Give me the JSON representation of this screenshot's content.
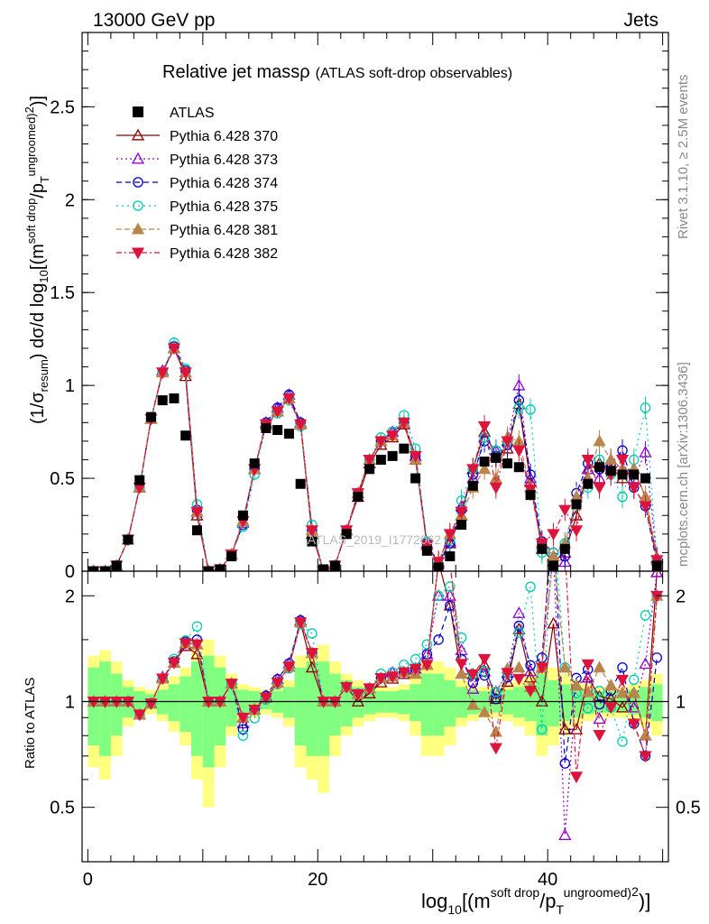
{
  "header": {
    "left": "13000 GeV pp",
    "right": "Jets"
  },
  "side_labels": {
    "rivet": "Rivet 3.1.10, ≥ 2.5M events",
    "mcplots": "mcplots.cern.ch [arXiv:1306.3436]"
  },
  "watermark": "ATLAS_2019_I1772062",
  "colors": {
    "atlas": "#000000",
    "p370": "#8b0000",
    "p373": "#9400d3",
    "p374": "#0000cd",
    "p375": "#00cdb0",
    "p381": "#b8864b",
    "p382": "#dc143c",
    "band_yellow": "#ffff80",
    "band_green": "#80ff80"
  },
  "chart_data": [
    {
      "type": "scatter",
      "title_main": "Relative jet massρ",
      "title_sub": "(ATLAS soft-drop observables)",
      "ylabel": "(1/σresum) dσ/d log10[(msoft drop/pTungroomed)2)]",
      "xlim": [
        -0.5,
        50.5
      ],
      "ylim": [
        0,
        2.9
      ],
      "yticks": [
        "0",
        "0.5",
        "1",
        "1.5",
        "2",
        "2.5"
      ],
      "yticks_values": [
        0,
        0.5,
        1,
        1.5,
        2,
        2.5
      ],
      "legend_position": "top-left",
      "atlas": {
        "name": "ATLAS",
        "x": [
          0.5,
          1.5,
          2.5,
          3.5,
          4.5,
          5.5,
          6.5,
          7.5,
          8.5,
          9.5,
          10.5,
          11.5,
          12.5,
          13.5,
          14.5,
          15.5,
          16.5,
          17.5,
          18.5,
          19.5,
          20.5,
          21.5,
          22.5,
          23.5,
          24.5,
          25.5,
          26.5,
          27.5,
          28.5,
          29.5,
          30.5,
          31.5,
          32.5,
          33.5,
          34.5,
          35.5,
          36.5,
          37.5,
          38.5,
          39.5,
          40.5,
          41.5,
          42.5,
          43.5,
          44.5,
          45.5,
          46.5,
          47.5,
          48.5,
          49.5
        ],
        "y": [
          0.0,
          0.0,
          0.03,
          0.17,
          0.49,
          0.83,
          0.92,
          0.93,
          0.73,
          0.22,
          0.0,
          0.01,
          0.08,
          0.3,
          0.58,
          0.77,
          0.76,
          0.74,
          0.47,
          0.16,
          0.01,
          0.03,
          0.2,
          0.4,
          0.55,
          0.6,
          0.62,
          0.66,
          0.5,
          0.11,
          0.02,
          0.08,
          0.25,
          0.46,
          0.59,
          0.61,
          0.58,
          0.56,
          0.41,
          0.12,
          0.03,
          0.12,
          0.36,
          0.47,
          0.56,
          0.54,
          0.52,
          0.52,
          0.5,
          0.03
        ]
      },
      "series": [
        {
          "name": "Pythia 6.428 370",
          "y": [
            0.0,
            0.0,
            0.03,
            0.17,
            0.45,
            0.82,
            1.07,
            1.2,
            1.05,
            0.3,
            0.0,
            0.01,
            0.09,
            0.27,
            0.55,
            0.79,
            0.86,
            0.93,
            0.79,
            0.2,
            0.0,
            0.03,
            0.22,
            0.4,
            0.58,
            0.68,
            0.72,
            0.79,
            0.6,
            0.14,
            0.05,
            0.15,
            0.3,
            0.55,
            0.75,
            0.62,
            0.66,
            0.9,
            0.48,
            0.12,
            0.05,
            0.1,
            0.3,
            0.55,
            0.58,
            0.55,
            0.5,
            0.55,
            0.4,
            0.07
          ]
        },
        {
          "name": "Pythia 6.428 373",
          "y": [
            0.0,
            0.0,
            0.03,
            0.17,
            0.45,
            0.82,
            1.08,
            1.2,
            1.07,
            0.32,
            0.0,
            0.01,
            0.09,
            0.26,
            0.55,
            0.8,
            0.88,
            0.95,
            0.8,
            0.22,
            0.0,
            0.03,
            0.22,
            0.42,
            0.6,
            0.7,
            0.75,
            0.8,
            0.62,
            0.15,
            0.04,
            0.16,
            0.35,
            0.5,
            0.72,
            0.65,
            0.7,
            1.0,
            0.5,
            0.15,
            0.08,
            0.05,
            0.4,
            0.55,
            0.5,
            0.6,
            0.55,
            0.5,
            0.64,
            0.07
          ]
        },
        {
          "name": "Pythia 6.428 374",
          "y": [
            0.0,
            0.0,
            0.03,
            0.17,
            0.45,
            0.82,
            1.07,
            1.21,
            1.08,
            0.33,
            0.0,
            0.01,
            0.09,
            0.25,
            0.55,
            0.8,
            0.88,
            0.95,
            0.8,
            0.22,
            0.0,
            0.03,
            0.22,
            0.42,
            0.6,
            0.7,
            0.75,
            0.8,
            0.62,
            0.15,
            0.03,
            0.15,
            0.33,
            0.52,
            0.7,
            0.62,
            0.68,
            0.92,
            0.52,
            0.16,
            0.1,
            0.08,
            0.42,
            0.58,
            0.55,
            0.58,
            0.65,
            0.45,
            0.35,
            0.04
          ]
        },
        {
          "name": "Pythia 6.428 375",
          "y": [
            0.0,
            0.0,
            0.03,
            0.17,
            0.45,
            0.82,
            1.07,
            1.23,
            1.09,
            0.36,
            0.0,
            0.01,
            0.09,
            0.24,
            0.52,
            0.78,
            0.85,
            0.92,
            0.78,
            0.25,
            0.0,
            0.03,
            0.22,
            0.42,
            0.6,
            0.72,
            0.75,
            0.84,
            0.66,
            0.16,
            0.04,
            0.17,
            0.38,
            0.55,
            0.72,
            0.65,
            0.7,
            0.88,
            0.87,
            0.1,
            0.1,
            0.15,
            0.38,
            0.45,
            0.6,
            0.52,
            0.4,
            0.6,
            0.88,
            0.06
          ]
        },
        {
          "name": "Pythia 6.428 381",
          "y": [
            0.0,
            0.0,
            0.03,
            0.17,
            0.45,
            0.82,
            1.07,
            1.2,
            1.07,
            0.32,
            0.0,
            0.01,
            0.09,
            0.27,
            0.55,
            0.79,
            0.86,
            0.93,
            0.79,
            0.22,
            0.0,
            0.03,
            0.22,
            0.42,
            0.6,
            0.7,
            0.73,
            0.8,
            0.6,
            0.14,
            0.05,
            0.2,
            0.3,
            0.45,
            0.55,
            0.5,
            0.72,
            0.7,
            0.45,
            0.15,
            0.08,
            0.15,
            0.4,
            0.5,
            0.7,
            0.6,
            0.55,
            0.55,
            0.4,
            0.06
          ]
        },
        {
          "name": "Pythia 6.428 382",
          "y": [
            0.0,
            0.0,
            0.03,
            0.17,
            0.45,
            0.82,
            1.07,
            1.2,
            1.07,
            0.32,
            0.0,
            0.01,
            0.09,
            0.27,
            0.55,
            0.79,
            0.86,
            0.93,
            0.79,
            0.22,
            0.0,
            0.03,
            0.22,
            0.42,
            0.6,
            0.7,
            0.73,
            0.8,
            0.62,
            0.14,
            0.05,
            0.2,
            0.32,
            0.55,
            0.78,
            0.45,
            0.7,
            0.65,
            0.44,
            0.15,
            0.2,
            0.33,
            0.22,
            0.6,
            0.45,
            0.52,
            0.6,
            0.45,
            0.35,
            0.06
          ]
        }
      ]
    },
    {
      "type": "scatter",
      "ylabel": "Ratio to ATLAS",
      "xlabel": "log10[(msoft drop/pTungroomed)2)]",
      "xlim": [
        -0.5,
        50.5
      ],
      "ylim": [
        0.35,
        2.35
      ],
      "yscale": "log",
      "xticks": [
        "0",
        "20",
        "40"
      ],
      "xticks_values": [
        0,
        20,
        40
      ],
      "yticks": [
        "0.5",
        "1",
        "2"
      ],
      "yticks_values": [
        0.5,
        1,
        2
      ],
      "reference_line": 1,
      "bands": {
        "yellow_half_width": [
          0.35,
          0.4,
          0.3,
          0.15,
          0.1,
          0.08,
          0.12,
          0.18,
          0.25,
          0.4,
          0.5,
          0.35,
          0.2,
          0.12,
          0.1,
          0.08,
          0.1,
          0.15,
          0.35,
          0.4,
          0.45,
          0.3,
          0.2,
          0.15,
          0.12,
          0.1,
          0.1,
          0.12,
          0.2,
          0.3,
          0.3,
          0.25,
          0.15,
          0.12,
          0.1,
          0.1,
          0.12,
          0.15,
          0.2,
          0.3,
          0.25,
          0.2,
          0.15,
          0.12,
          0.1,
          0.1,
          0.1,
          0.12,
          0.15,
          0.2
        ],
        "green_half_width": [
          0.25,
          0.3,
          0.2,
          0.1,
          0.07,
          0.05,
          0.08,
          0.12,
          0.18,
          0.3,
          0.35,
          0.25,
          0.15,
          0.08,
          0.07,
          0.05,
          0.07,
          0.1,
          0.25,
          0.3,
          0.3,
          0.2,
          0.15,
          0.1,
          0.08,
          0.07,
          0.07,
          0.08,
          0.12,
          0.2,
          0.2,
          0.15,
          0.1,
          0.08,
          0.07,
          0.07,
          0.08,
          0.1,
          0.12,
          0.2,
          0.15,
          0.12,
          0.1,
          0.08,
          0.07,
          0.07,
          0.07,
          0.08,
          0.1,
          0.12
        ]
      }
    }
  ]
}
